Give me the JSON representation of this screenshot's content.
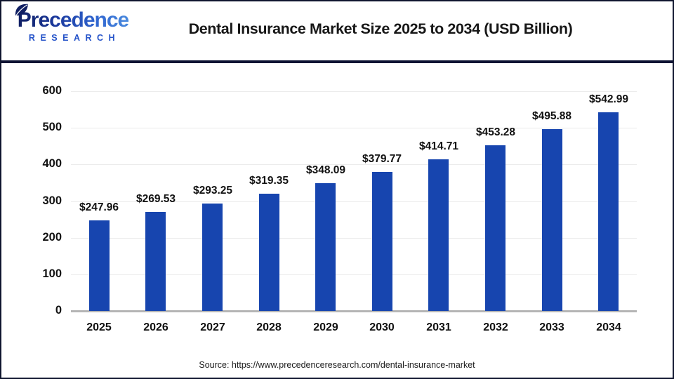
{
  "header": {
    "logo": {
      "name": "Precedence",
      "subname": "RESEARCH"
    },
    "title": "Dental Insurance Market Size 2025 to 2034 (USD Billion)"
  },
  "chart_data": {
    "type": "bar",
    "title": "Dental Insurance Market Size 2025 to 2034 (USD Billion)",
    "categories": [
      "2025",
      "2026",
      "2027",
      "2028",
      "2029",
      "2030",
      "2031",
      "2032",
      "2033",
      "2034"
    ],
    "values": [
      247.96,
      269.53,
      293.25,
      319.35,
      348.09,
      379.77,
      414.71,
      453.28,
      495.88,
      542.99
    ],
    "value_prefix": "$",
    "xlabel": "",
    "ylabel": "",
    "ylim": [
      0,
      600
    ],
    "yticks": [
      0,
      100,
      200,
      300,
      400,
      500,
      600
    ],
    "grid": true,
    "legend": false,
    "bar_color": "#1745af",
    "gridline_color": "#ebebeb",
    "axis_line_color": "#b5b5b5",
    "label_color": "#111111"
  },
  "footer": {
    "source": "Source: https://www.precedenceresearch.com/dental-insurance-market"
  }
}
